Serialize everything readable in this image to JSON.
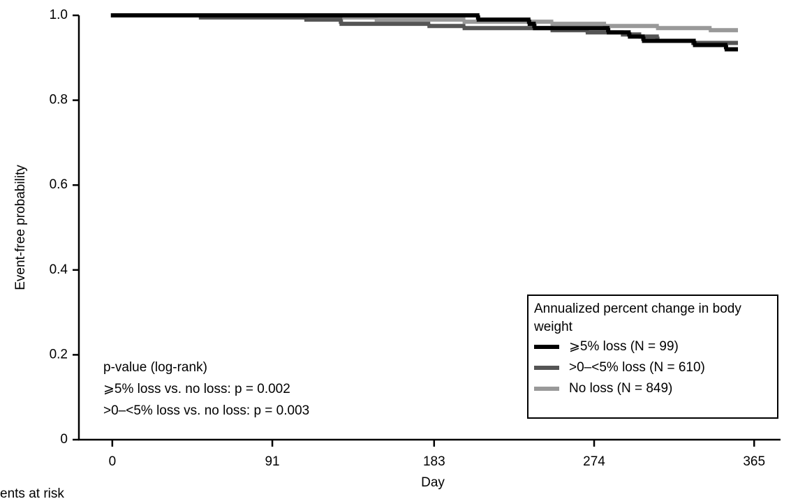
{
  "chart_data": {
    "type": "step",
    "y_label": "Event-free probability",
    "x_label": "Day",
    "legend_title": "Annualized percent change in body weight",
    "xlim": [
      -19,
      380
    ],
    "xticks": [
      0,
      91,
      183,
      274,
      365
    ],
    "ylim": [
      0,
      1
    ],
    "yticks": [
      0,
      {
        "value": 0.2,
        "label": "0.2"
      },
      {
        "value": 0.4,
        "label": "0.4"
      },
      {
        "value": 0.6,
        "label": "0.6"
      },
      {
        "value": 0.8,
        "label": "0.8"
      },
      {
        "value": 1,
        "label": "1.0"
      }
    ],
    "annotations": [
      "p-value (log-rank)",
      "⩾5% loss vs. no loss: p = 0.002",
      ">0–<5% loss vs. no loss: p = 0.003"
    ],
    "series": [
      {
        "name": "⩾5% loss (N = 99)",
        "color": "#000000",
        "x": [
          0,
          208,
          237,
          240,
          282,
          294,
          302,
          331,
          349,
          355
        ],
        "values": [
          1,
          0.99,
          0.98,
          0.97,
          0.96,
          0.95,
          0.94,
          0.93,
          0.92,
          0.92
        ]
      },
      {
        "name": ">0–<5% loss (N = 610)",
        "color": "#555555",
        "x": [
          0,
          50,
          110,
          130,
          180,
          200,
          250,
          270,
          290,
          300,
          310,
          330,
          355
        ],
        "values": [
          1,
          0.995,
          0.99,
          0.98,
          0.975,
          0.97,
          0.965,
          0.96,
          0.955,
          0.95,
          0.94,
          0.935,
          0.935
        ]
      },
      {
        "name": "No loss (N = 849)",
        "color": "#999999",
        "x": [
          0,
          100,
          150,
          200,
          250,
          280,
          310,
          340,
          355
        ],
        "values": [
          1,
          0.995,
          0.99,
          0.985,
          0.98,
          0.975,
          0.97,
          0.965,
          0.965
        ]
      }
    ]
  },
  "footer": "ents at risk"
}
